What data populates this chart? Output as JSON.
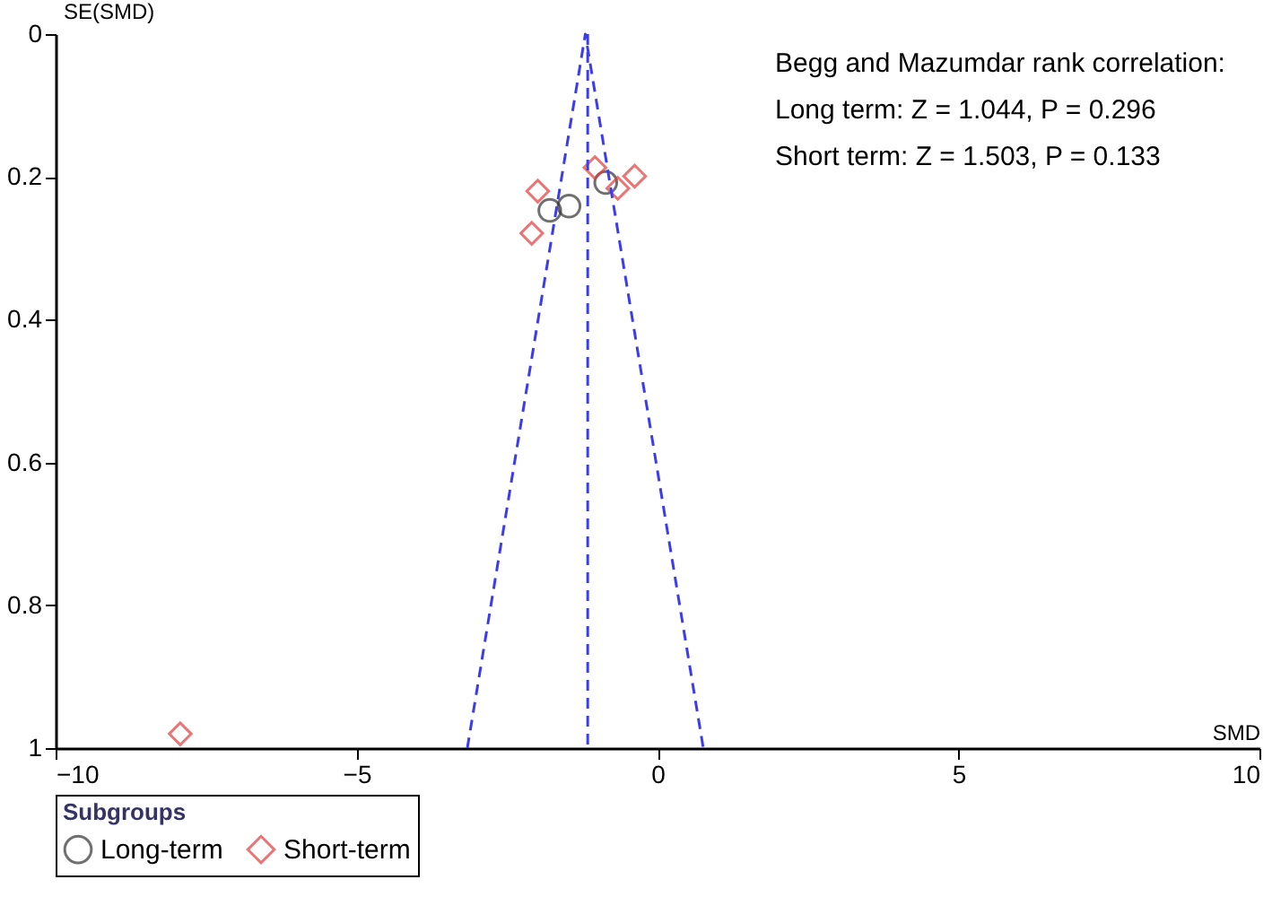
{
  "chart_data": {
    "type": "scatter",
    "xlabel": "SMD",
    "ylabel": "SE(SMD)",
    "legend_title": "Subgroups",
    "xlim": [
      -10,
      10
    ],
    "xticks": [
      -10,
      -5,
      0,
      5,
      10
    ],
    "ylim": [
      1,
      0
    ],
    "yticks": [
      0,
      0.2,
      0.4,
      0.6,
      0.8,
      1
    ],
    "grid": false,
    "legend": "bottom",
    "series": [
      {
        "name": "Long-term",
        "color": "#333333",
        "marker": "circle",
        "x": [
          -1.79,
          -1.47,
          -0.86
        ],
        "values": [
          0.247,
          0.241,
          0.208
        ]
      },
      {
        "name": "Short-term",
        "color": "#e03c3c",
        "marker": "diamond",
        "x": [
          -1.99,
          -2.09,
          -1.04,
          -0.66,
          -0.38,
          -7.93
        ],
        "values": [
          0.22,
          0.279,
          0.187,
          0.216,
          0.199,
          0.98
        ]
      },
      {
        "color": "#3b3bf0",
        "type": "line",
        "line_style": "dashed",
        "marker": "none",
        "x": [
          -3.16,
          -1.2,
          0.76
        ],
        "values": [
          1,
          0,
          1
        ]
      }
    ],
    "ref_lines": [
      {
        "axis": "x",
        "value": -1.16,
        "color": "#3b3bf0",
        "line_style": "dashed"
      }
    ],
    "annotations": [
      "Begg and Mazumdar rank correlation:",
      "Long term: Z = 1.044, P = 0.296",
      "Short term: Z = 1.503, P = 0.133"
    ]
  }
}
